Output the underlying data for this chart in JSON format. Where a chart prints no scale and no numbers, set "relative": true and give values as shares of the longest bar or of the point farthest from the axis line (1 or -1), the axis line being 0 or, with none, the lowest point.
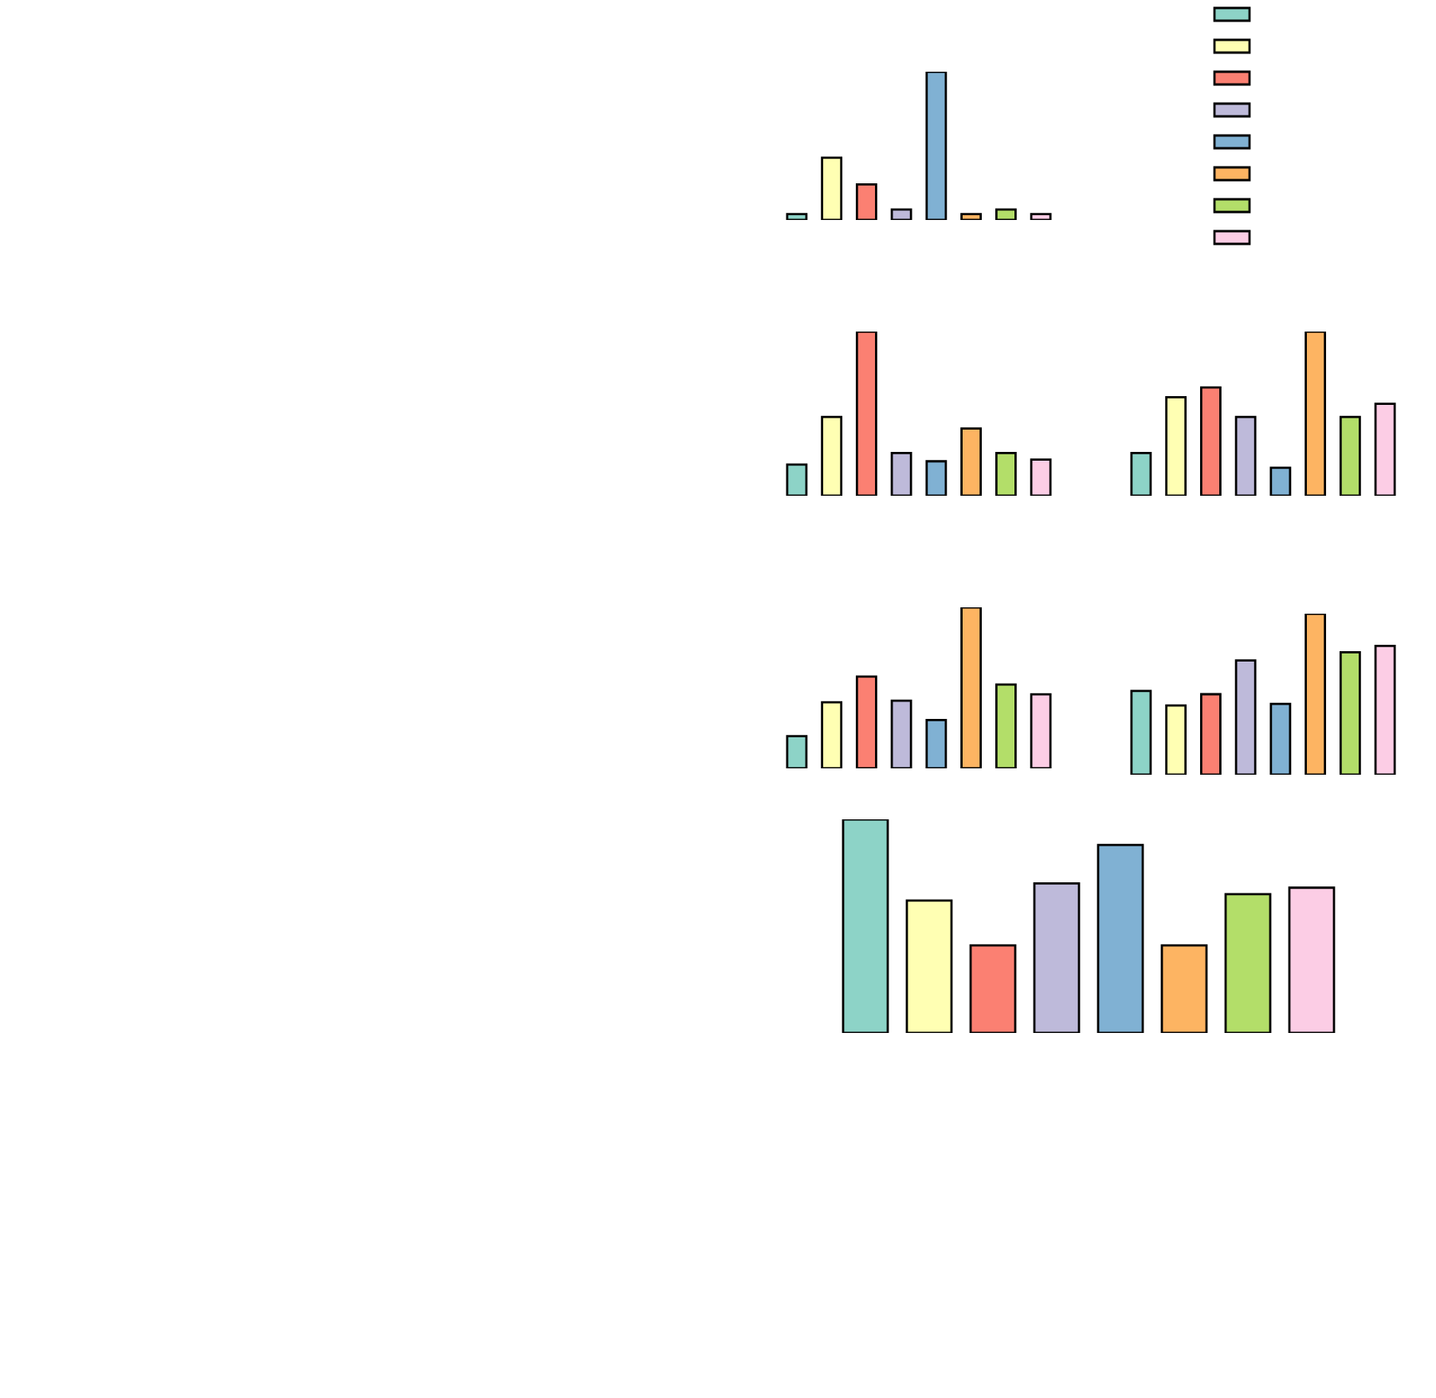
{
  "chart_data": [
    {
      "type": "bar",
      "relative": true,
      "categories": [
        null,
        null,
        null,
        null,
        null,
        null,
        null,
        null
      ],
      "colors": [
        "#8dd3c7",
        "#ffffb3",
        "#fb8072",
        "#bebada",
        "#80b1d3",
        "#fdb462",
        "#b3de69",
        "#fccde5"
      ],
      "values": [
        0.04,
        0.42,
        0.24,
        0.07,
        1.0,
        0.04,
        0.07,
        0.04
      ]
    },
    {
      "type": "bar",
      "relative": true,
      "categories": [
        null,
        null,
        null,
        null,
        null,
        null,
        null,
        null
      ],
      "colors": [
        "#8dd3c7",
        "#ffffb3",
        "#fb8072",
        "#bebada",
        "#80b1d3",
        "#fdb462",
        "#b3de69",
        "#fccde5"
      ],
      "values": [
        0.19,
        0.48,
        1.0,
        0.26,
        0.21,
        0.41,
        0.26,
        0.22
      ]
    },
    {
      "type": "bar",
      "relative": true,
      "categories": [
        null,
        null,
        null,
        null,
        null,
        null,
        null,
        null
      ],
      "colors": [
        "#8dd3c7",
        "#ffffb3",
        "#fb8072",
        "#bebada",
        "#80b1d3",
        "#fdb462",
        "#b3de69",
        "#fccde5"
      ],
      "values": [
        0.26,
        0.6,
        0.66,
        0.48,
        0.17,
        1.0,
        0.48,
        0.56
      ]
    },
    {
      "type": "bar",
      "relative": true,
      "categories": [
        null,
        null,
        null,
        null,
        null,
        null,
        null,
        null
      ],
      "colors": [
        "#8dd3c7",
        "#ffffb3",
        "#fb8072",
        "#bebada",
        "#80b1d3",
        "#fdb462",
        "#b3de69",
        "#fccde5"
      ],
      "values": [
        0.2,
        0.41,
        0.57,
        0.42,
        0.3,
        1.0,
        0.52,
        0.46
      ]
    },
    {
      "type": "bar",
      "relative": true,
      "categories": [
        null,
        null,
        null,
        null,
        null,
        null,
        null,
        null
      ],
      "colors": [
        "#8dd3c7",
        "#ffffb3",
        "#fb8072",
        "#bebada",
        "#80b1d3",
        "#fdb462",
        "#b3de69",
        "#fccde5"
      ],
      "values": [
        0.52,
        0.43,
        0.5,
        0.71,
        0.44,
        1.0,
        0.76,
        0.8
      ]
    },
    {
      "type": "bar",
      "relative": true,
      "categories": [
        null,
        null,
        null,
        null,
        null,
        null,
        null,
        null
      ],
      "colors": [
        "#8dd3c7",
        "#ffffb3",
        "#fb8072",
        "#bebada",
        "#80b1d3",
        "#fdb462",
        "#b3de69",
        "#fccde5"
      ],
      "values": [
        1.0,
        0.62,
        0.41,
        0.7,
        0.88,
        0.41,
        0.65,
        0.68
      ]
    }
  ]
}
